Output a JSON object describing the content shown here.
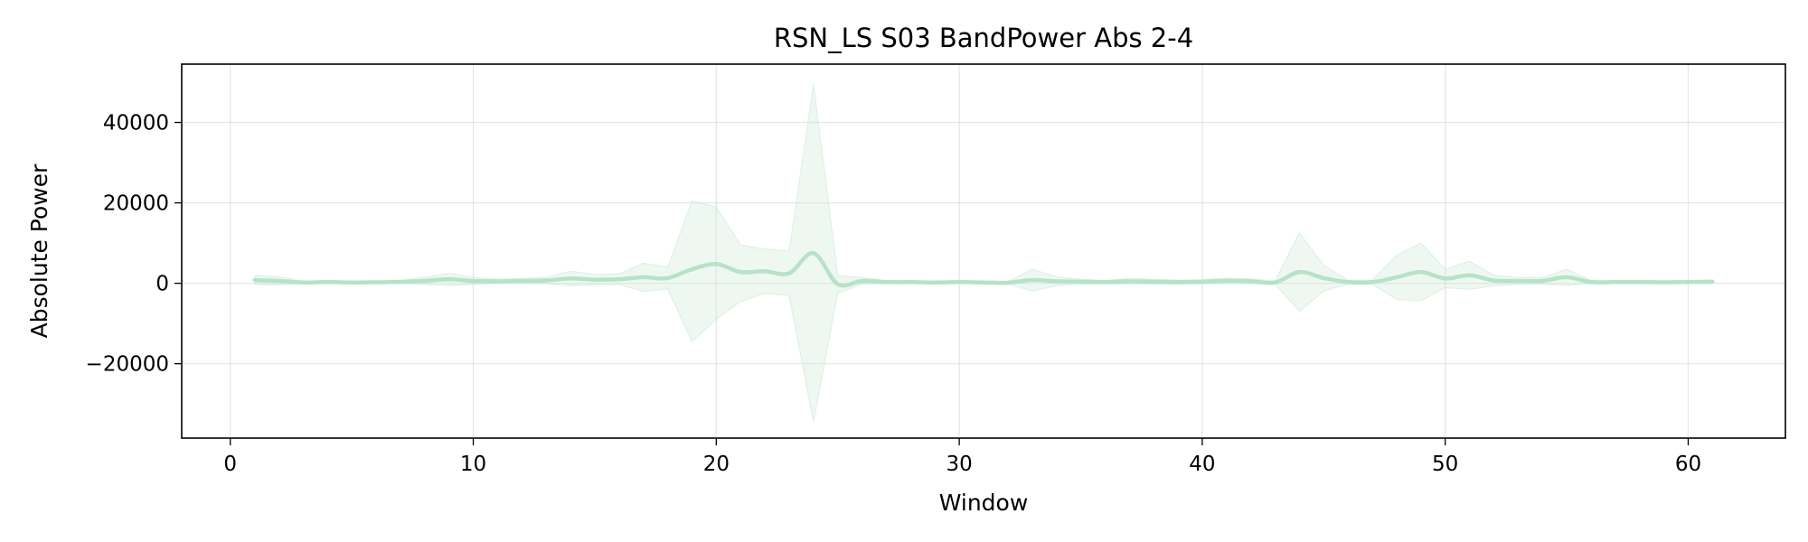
{
  "chart_data": {
    "type": "line",
    "title": "RSN_LS S03 BandPower Abs 2-4",
    "xlabel": "Window",
    "ylabel": "Absolute Power",
    "xlim": [
      -2,
      64
    ],
    "ylim": [
      -38500,
      54500
    ],
    "xticks": [
      0,
      10,
      20,
      30,
      40,
      50,
      60
    ],
    "yticks": [
      -20000,
      0,
      20000,
      40000
    ],
    "ytick_labels": [
      "−20000",
      "0",
      "20000",
      "40000"
    ],
    "grid": true,
    "legend": "none",
    "colors": {
      "line": "#b6e3c8",
      "band": "#cdebd8"
    },
    "series": [
      {
        "x": [
          1,
          2,
          3,
          4,
          5,
          6,
          7,
          8,
          9,
          10,
          11,
          12,
          13,
          14,
          15,
          16,
          17,
          18,
          19,
          20,
          21,
          22,
          23,
          24,
          25,
          26,
          27,
          28,
          29,
          30,
          31,
          32,
          33,
          34,
          35,
          36,
          37,
          38,
          39,
          40,
          41,
          42,
          43,
          44,
          45,
          46,
          47,
          48,
          49,
          50,
          51,
          52,
          53,
          54,
          55,
          56,
          57,
          58,
          59,
          60,
          61
        ],
        "values": [
          800,
          600,
          200,
          300,
          200,
          250,
          350,
          600,
          1000,
          600,
          500,
          600,
          700,
          1200,
          900,
          1000,
          1500,
          1300,
          3500,
          4800,
          2800,
          3000,
          2500,
          7500,
          -200,
          600,
          300,
          300,
          200,
          300,
          200,
          150,
          800,
          500,
          400,
          300,
          500,
          400,
          300,
          400,
          600,
          500,
          200,
          2800,
          1300,
          300,
          300,
          1500,
          2800,
          1200,
          2000,
          700,
          600,
          600,
          1500,
          300,
          300,
          300,
          250,
          300,
          400
        ],
        "upper": [
          2000,
          1600,
          500,
          500,
          400,
          500,
          700,
          1500,
          2500,
          1500,
          1000,
          1200,
          1500,
          3000,
          2200,
          2300,
          5000,
          4000,
          20500,
          19000,
          9500,
          8500,
          8000,
          49500,
          2000,
          1400,
          700,
          600,
          400,
          600,
          400,
          400,
          3500,
          1600,
          1000,
          700,
          1200,
          1000,
          800,
          900,
          1300,
          1100,
          600,
          12500,
          4500,
          800,
          800,
          7000,
          10000,
          3500,
          5500,
          2000,
          1500,
          1400,
          3500,
          700,
          600,
          600,
          500,
          600,
          800
        ],
        "lower": [
          -300,
          -400,
          -100,
          100,
          0,
          0,
          0,
          -300,
          -500,
          -300,
          0,
          0,
          -100,
          -600,
          -400,
          -300,
          -2000,
          -1400,
          -14500,
          -9000,
          -4500,
          -2500,
          -3000,
          -34500,
          -2400,
          -200,
          -100,
          0,
          0,
          0,
          0,
          -100,
          -1900,
          -600,
          -200,
          -100,
          -200,
          -200,
          -200,
          -100,
          -100,
          -100,
          -200,
          -7000,
          -1900,
          -200,
          -200,
          -4000,
          -4400,
          -1100,
          -1500,
          -600,
          -300,
          -200,
          -500,
          -100,
          0,
          0,
          0,
          0,
          0
        ]
      }
    ]
  }
}
